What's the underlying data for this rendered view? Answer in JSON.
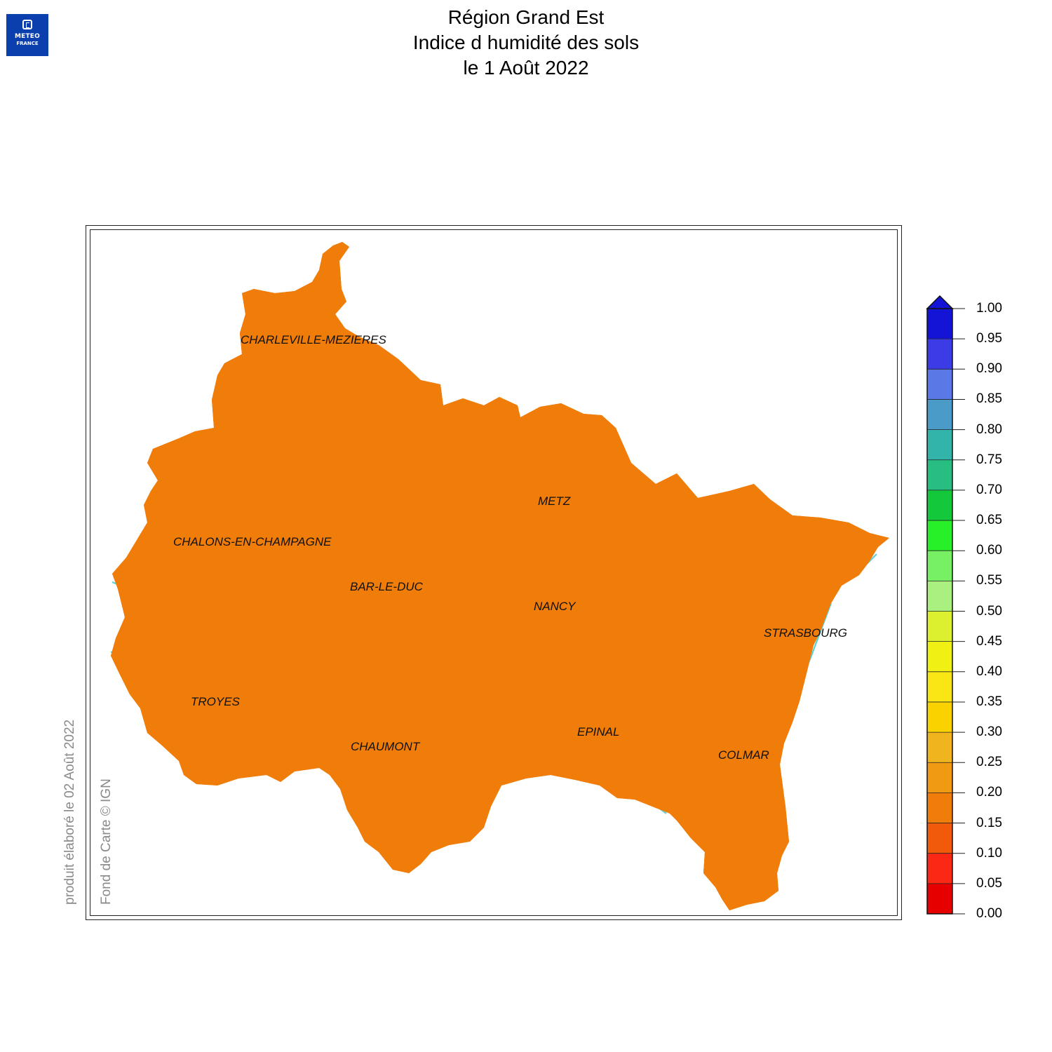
{
  "header": {
    "logo_line1": "METEO",
    "logo_line2": "FRANCE",
    "title_line1": "Région Grand Est",
    "title_line2": "Indice d humidité des sols",
    "title_line3": "le 1 Août 2022"
  },
  "credits": {
    "produced": "produit élaboré le 02 Août 2022",
    "basemap": "Fond de Carte © IGN"
  },
  "cities": [
    {
      "id": "charleville",
      "label": "CHARLEVILLE-MEZIERES"
    },
    {
      "id": "chalons",
      "label": "CHALONS-EN-CHAMPAGNE"
    },
    {
      "id": "bar-le-duc",
      "label": "BAR-LE-DUC"
    },
    {
      "id": "metz",
      "label": "METZ"
    },
    {
      "id": "nancy",
      "label": "NANCY"
    },
    {
      "id": "strasbourg",
      "label": "STRASBOURG"
    },
    {
      "id": "troyes",
      "label": "TROYES"
    },
    {
      "id": "chaumont",
      "label": "CHAUMONT"
    },
    {
      "id": "epinal",
      "label": "EPINAL"
    },
    {
      "id": "colmar",
      "label": "COLMAR"
    }
  ],
  "colorbar": {
    "labels": [
      "1.00",
      "0.95",
      "0.90",
      "0.85",
      "0.80",
      "0.75",
      "0.70",
      "0.65",
      "0.60",
      "0.55",
      "0.50",
      "0.45",
      "0.40",
      "0.35",
      "0.30",
      "0.25",
      "0.20",
      "0.15",
      "0.10",
      "0.05",
      "0.00"
    ],
    "colors": [
      "#1414d6",
      "#3c3ce6",
      "#5a78e6",
      "#4b9bc8",
      "#32b4aa",
      "#28be82",
      "#14c83c",
      "#28f028",
      "#78f064",
      "#aaf080",
      "#dcf030",
      "#f0f014",
      "#fae614",
      "#fad200",
      "#f0b41e",
      "#f09a14",
      "#f07c0a",
      "#f05a0a",
      "#fa2814",
      "#e60000"
    ],
    "arrow_color": "#1414d6"
  },
  "map_palette": {
    "base": "#f07c0a",
    "dry": "#f05a0a",
    "very_dry": "#fa2814",
    "moist": "#f09a14",
    "moister": "#f0b41e",
    "wettest": "#fad200",
    "rivers": "#5ad2d2",
    "borders": "#111111",
    "catchments": "#8c6a20"
  }
}
